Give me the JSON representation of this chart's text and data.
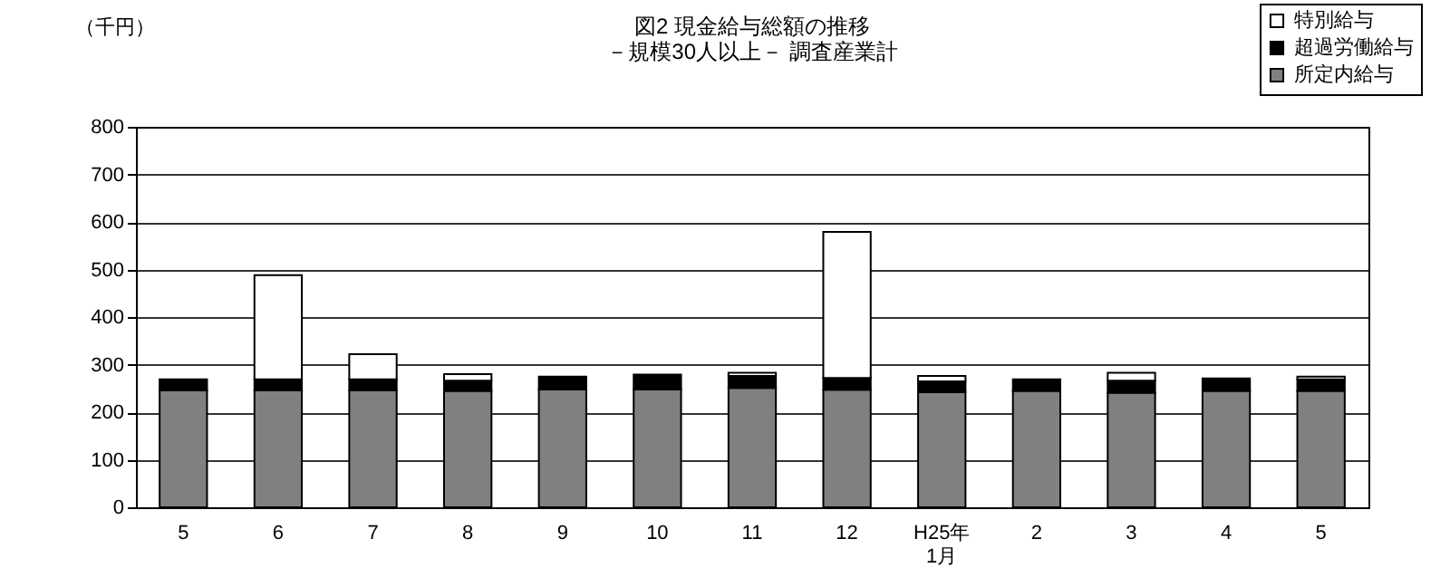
{
  "chart_data": {
    "type": "bar",
    "title": "図2  現金給与総額の推移",
    "subtitle": "－規模30人以上－  調査産業計",
    "ylabel": "（千円）",
    "categories": [
      "5",
      "6",
      "7",
      "8",
      "9",
      "10",
      "11",
      "12",
      "H25年\n1月",
      "2",
      "3",
      "4",
      "5"
    ],
    "stacked": true,
    "series": [
      {
        "name": "所定内給与",
        "color": "#808080",
        "values": [
          246,
          246,
          246,
          245,
          248,
          248,
          251,
          247,
          242,
          245,
          241,
          245,
          245
        ]
      },
      {
        "name": "超過労働給与",
        "color": "#000000",
        "values": [
          23,
          23,
          23,
          21,
          27,
          31,
          25,
          25,
          23,
          24,
          25,
          26,
          24
        ]
      },
      {
        "name": "特別給与",
        "color": "#ffffff",
        "values": [
          null,
          219,
          53,
          14,
          null,
          null,
          7,
          307,
          11,
          null,
          17,
          null,
          6
        ]
      }
    ],
    "ylim": [
      0,
      800
    ],
    "yticks": [
      0,
      100,
      200,
      300,
      400,
      500,
      600,
      700,
      800
    ],
    "grid": "y",
    "legend": "top right"
  }
}
